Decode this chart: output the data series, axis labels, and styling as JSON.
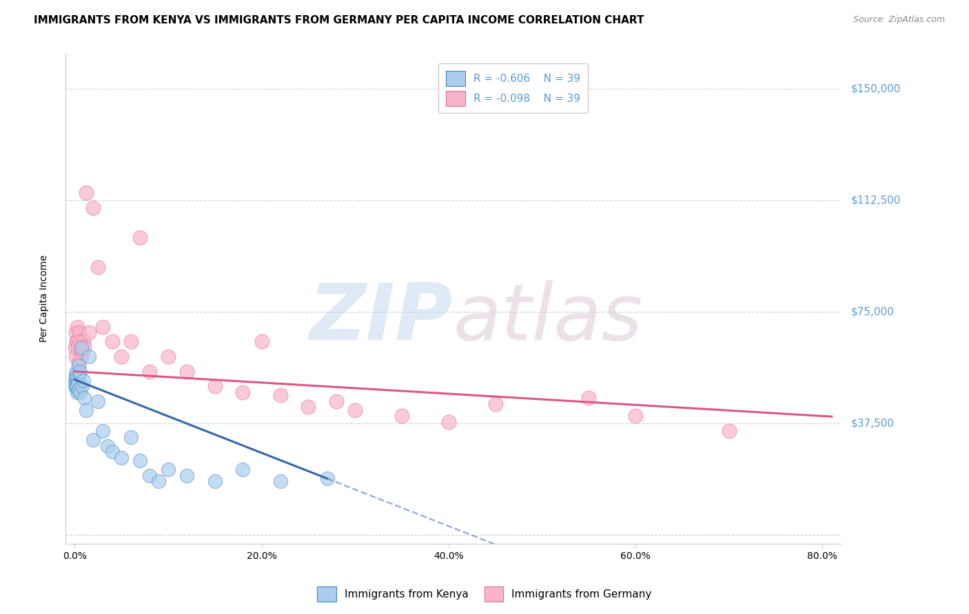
{
  "title": "IMMIGRANTS FROM KENYA VS IMMIGRANTS FROM GERMANY PER CAPITA INCOME CORRELATION CHART",
  "source": "Source: ZipAtlas.com",
  "ylabel": "Per Capita Income",
  "xlabel_ticks": [
    "0.0%",
    "20.0%",
    "40.0%",
    "60.0%",
    "80.0%"
  ],
  "xlabel_vals": [
    0.0,
    20.0,
    40.0,
    60.0,
    80.0
  ],
  "yticks": [
    0,
    37500,
    75000,
    112500,
    150000
  ],
  "ytick_labels": [
    "",
    "$37,500",
    "$75,000",
    "$112,500",
    "$150,000"
  ],
  "ylim": [
    -3000,
    162000
  ],
  "xlim": [
    -1.0,
    82.0
  ],
  "kenya_color": "#aaccee",
  "germany_color": "#f8b4c8",
  "kenya_edge_color": "#4488bb",
  "germany_edge_color": "#e07090",
  "kenya_line_color": "#3366aa",
  "germany_line_color": "#dd5588",
  "yaxis_label_color": "#5b9bd5",
  "legend_text_color": "#5b9bd5",
  "background_color": "#ffffff",
  "grid_color": "#cccccc",
  "title_fontsize": 11,
  "tick_fontsize": 10,
  "kenya_x": [
    0.05,
    0.08,
    0.1,
    0.12,
    0.15,
    0.18,
    0.2,
    0.22,
    0.25,
    0.28,
    0.3,
    0.35,
    0.4,
    0.45,
    0.5,
    0.55,
    0.6,
    0.7,
    0.8,
    0.9,
    1.0,
    1.2,
    1.5,
    2.0,
    2.5,
    3.0,
    3.5,
    4.0,
    5.0,
    6.0,
    7.0,
    8.0,
    9.0,
    10.0,
    12.0,
    15.0,
    18.0,
    22.0,
    27.0
  ],
  "kenya_y": [
    52000,
    50000,
    54000,
    51000,
    53000,
    49000,
    55000,
    50000,
    52000,
    48000,
    53000,
    51000,
    57000,
    49000,
    54000,
    48000,
    55000,
    63000,
    50000,
    52000,
    46000,
    42000,
    60000,
    32000,
    45000,
    35000,
    30000,
    28000,
    26000,
    33000,
    25000,
    20000,
    18000,
    22000,
    20000,
    18000,
    22000,
    18000,
    19000
  ],
  "germany_x": [
    0.05,
    0.1,
    0.15,
    0.2,
    0.25,
    0.3,
    0.35,
    0.4,
    0.5,
    0.6,
    0.7,
    0.8,
    0.9,
    1.0,
    1.2,
    1.5,
    2.0,
    2.5,
    3.0,
    4.0,
    5.0,
    6.0,
    7.0,
    8.0,
    10.0,
    12.0,
    15.0,
    18.0,
    20.0,
    22.0,
    25.0,
    28.0,
    30.0,
    35.0,
    40.0,
    45.0,
    55.0,
    60.0,
    70.0
  ],
  "germany_y": [
    63000,
    60000,
    68000,
    65000,
    70000,
    65000,
    63000,
    58000,
    68000,
    65000,
    60000,
    62000,
    65000,
    63000,
    115000,
    68000,
    110000,
    90000,
    70000,
    65000,
    60000,
    65000,
    100000,
    55000,
    60000,
    55000,
    50000,
    48000,
    65000,
    47000,
    43000,
    45000,
    42000,
    40000,
    38000,
    44000,
    46000,
    40000,
    35000
  ],
  "watermark_color_zip": "#c8d8f0",
  "watermark_color_atlas": "#ddc8d8"
}
